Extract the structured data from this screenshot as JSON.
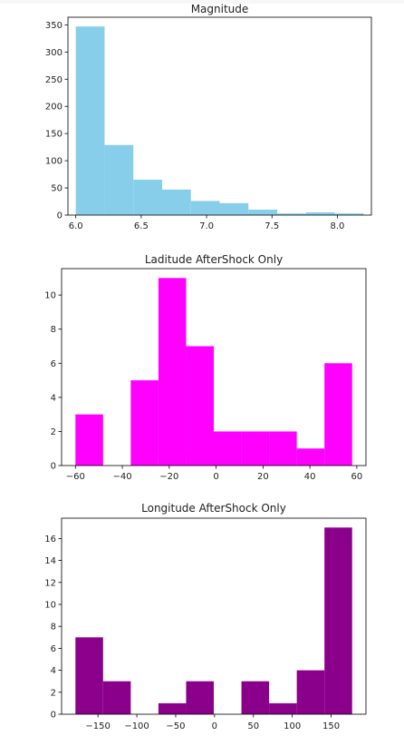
{
  "chart_data": [
    {
      "type": "bar",
      "title": "Magnitude",
      "xlabel": "",
      "ylabel": "",
      "color": "#87ceeb",
      "bin_edges": [
        6.0,
        6.22,
        6.44,
        6.66,
        6.88,
        7.1,
        7.32,
        7.54,
        7.76,
        7.98,
        8.2
      ],
      "values": [
        347,
        129,
        65,
        47,
        26,
        22,
        10,
        3,
        5,
        3
      ],
      "xlim": [
        5.94,
        8.26
      ],
      "ylim": [
        0,
        364
      ],
      "xticks": [
        6.0,
        6.5,
        7.0,
        7.5,
        8.0
      ],
      "xtick_labels": [
        "6.0",
        "6.5",
        "7.0",
        "7.5",
        "8.0"
      ],
      "yticks": [
        0,
        50,
        100,
        150,
        200,
        250,
        300,
        350
      ],
      "ytick_labels": [
        "0",
        "50",
        "100",
        "150",
        "200",
        "250",
        "300",
        "350"
      ]
    },
    {
      "type": "bar",
      "title": "Laditude AfterShock Only",
      "xlabel": "",
      "ylabel": "",
      "color": "#ff00ff",
      "bin_edges": [
        -60.0,
        -48.2,
        -36.4,
        -24.6,
        -12.8,
        -1.0,
        10.8,
        22.6,
        34.4,
        46.2,
        58.0
      ],
      "values": [
        3,
        0,
        5,
        11,
        7,
        2,
        2,
        2,
        1,
        6
      ],
      "xlim": [
        -65.9,
        63.9
      ],
      "ylim": [
        0,
        11.55
      ],
      "xticks": [
        -60,
        -40,
        -20,
        0,
        20,
        40,
        60
      ],
      "xtick_labels": [
        "−60",
        "−40",
        "−20",
        "0",
        "20",
        "40",
        "60"
      ],
      "yticks": [
        0,
        2,
        4,
        6,
        8,
        10
      ],
      "ytick_labels": [
        "0",
        "2",
        "4",
        "6",
        "8",
        "10"
      ]
    },
    {
      "type": "bar",
      "title": "Longitude AfterShock Only",
      "xlabel": "",
      "ylabel": "",
      "color": "#8b008b",
      "bin_edges": [
        -179.0,
        -143.4,
        -107.8,
        -72.2,
        -36.6,
        -1.0,
        34.6,
        70.2,
        105.8,
        141.4,
        177.0
      ],
      "values": [
        7,
        3,
        0,
        1,
        3,
        0,
        3,
        1,
        4,
        17
      ],
      "xlim": [
        -196.8,
        194.8
      ],
      "ylim": [
        0,
        17.85
      ],
      "xticks": [
        -150,
        -100,
        -50,
        0,
        50,
        100,
        150
      ],
      "xtick_labels": [
        "−150",
        "−100",
        "−50",
        "0",
        "50",
        "100",
        "150"
      ],
      "yticks": [
        0,
        2,
        4,
        6,
        8,
        10,
        12,
        14,
        16
      ],
      "ytick_labels": [
        "0",
        "2",
        "4",
        "6",
        "8",
        "10",
        "12",
        "14",
        "16"
      ]
    }
  ]
}
